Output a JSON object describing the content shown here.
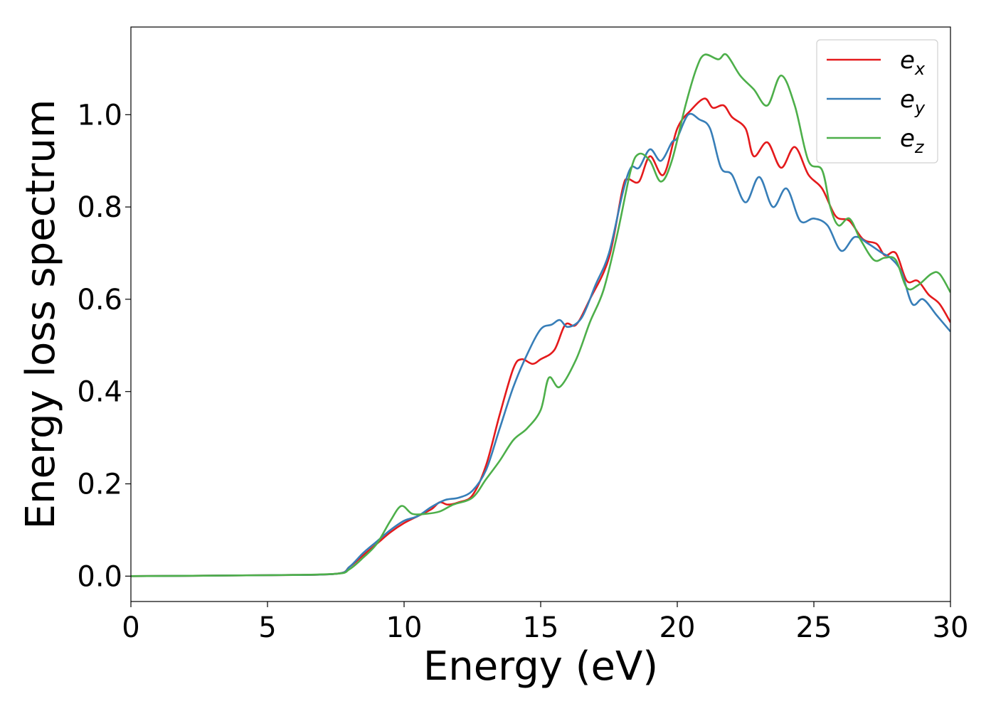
{
  "chart_data": {
    "type": "line",
    "title": "",
    "xlabel": "Energy (eV)",
    "ylabel": "Energy loss spectrum",
    "xlim": [
      0,
      30
    ],
    "ylim": [
      -0.055,
      1.19
    ],
    "xticks": [
      0,
      5,
      10,
      15,
      20,
      25,
      30
    ],
    "xtick_labels": [
      "0",
      "5",
      "10",
      "15",
      "20",
      "25",
      "30"
    ],
    "yticks": [
      0.0,
      0.2,
      0.4,
      0.6,
      0.8,
      1.0
    ],
    "ytick_labels": [
      "0.0",
      "0.2",
      "0.4",
      "0.6",
      "0.8",
      "1.0"
    ],
    "grid": false,
    "legend_position": "top-right",
    "series": [
      {
        "name": "e_x",
        "label_base": "e",
        "label_sub": "x",
        "color": "#e41a1c",
        "points": [
          [
            0,
            0.0
          ],
          [
            5,
            0.002
          ],
          [
            7.5,
            0.005
          ],
          [
            8.0,
            0.02
          ],
          [
            8.5,
            0.045
          ],
          [
            9.0,
            0.07
          ],
          [
            9.5,
            0.095
          ],
          [
            10.0,
            0.115
          ],
          [
            10.5,
            0.13
          ],
          [
            11.0,
            0.145
          ],
          [
            11.3,
            0.16
          ],
          [
            11.6,
            0.155
          ],
          [
            12.0,
            0.16
          ],
          [
            12.5,
            0.175
          ],
          [
            13.0,
            0.24
          ],
          [
            13.5,
            0.35
          ],
          [
            14.0,
            0.45
          ],
          [
            14.3,
            0.47
          ],
          [
            14.7,
            0.46
          ],
          [
            15.0,
            0.47
          ],
          [
            15.5,
            0.49
          ],
          [
            15.9,
            0.545
          ],
          [
            16.3,
            0.545
          ],
          [
            16.8,
            0.6
          ],
          [
            17.5,
            0.69
          ],
          [
            18.0,
            0.84
          ],
          [
            18.2,
            0.86
          ],
          [
            18.6,
            0.855
          ],
          [
            19.0,
            0.91
          ],
          [
            19.5,
            0.87
          ],
          [
            20.0,
            0.97
          ],
          [
            20.5,
            1.01
          ],
          [
            21.0,
            1.035
          ],
          [
            21.3,
            1.015
          ],
          [
            21.7,
            1.02
          ],
          [
            22.0,
            0.995
          ],
          [
            22.5,
            0.97
          ],
          [
            22.8,
            0.91
          ],
          [
            23.3,
            0.94
          ],
          [
            23.8,
            0.885
          ],
          [
            24.3,
            0.93
          ],
          [
            24.8,
            0.87
          ],
          [
            25.3,
            0.84
          ],
          [
            25.8,
            0.78
          ],
          [
            26.3,
            0.77
          ],
          [
            26.8,
            0.73
          ],
          [
            27.3,
            0.72
          ],
          [
            27.6,
            0.695
          ],
          [
            28.0,
            0.7
          ],
          [
            28.4,
            0.64
          ],
          [
            28.8,
            0.64
          ],
          [
            29.2,
            0.61
          ],
          [
            29.6,
            0.59
          ],
          [
            30.0,
            0.55
          ]
        ]
      },
      {
        "name": "e_y",
        "label_base": "e",
        "label_sub": "y",
        "color": "#377eb8",
        "points": [
          [
            0,
            0.0
          ],
          [
            5,
            0.002
          ],
          [
            7.5,
            0.005
          ],
          [
            8.0,
            0.02
          ],
          [
            8.5,
            0.05
          ],
          [
            9.0,
            0.075
          ],
          [
            9.5,
            0.1
          ],
          [
            10.0,
            0.12
          ],
          [
            10.5,
            0.13
          ],
          [
            11.0,
            0.15
          ],
          [
            11.5,
            0.165
          ],
          [
            12.0,
            0.17
          ],
          [
            12.5,
            0.185
          ],
          [
            13.0,
            0.23
          ],
          [
            13.5,
            0.32
          ],
          [
            14.0,
            0.41
          ],
          [
            14.5,
            0.48
          ],
          [
            15.0,
            0.535
          ],
          [
            15.4,
            0.545
          ],
          [
            15.7,
            0.555
          ],
          [
            16.0,
            0.54
          ],
          [
            16.5,
            0.56
          ],
          [
            17.0,
            0.63
          ],
          [
            17.5,
            0.7
          ],
          [
            18.0,
            0.83
          ],
          [
            18.3,
            0.885
          ],
          [
            18.6,
            0.885
          ],
          [
            19.0,
            0.925
          ],
          [
            19.4,
            0.9
          ],
          [
            19.8,
            0.94
          ],
          [
            20.0,
            0.95
          ],
          [
            20.4,
            1.0
          ],
          [
            20.8,
            0.99
          ],
          [
            21.2,
            0.97
          ],
          [
            21.6,
            0.885
          ],
          [
            22.0,
            0.87
          ],
          [
            22.5,
            0.81
          ],
          [
            23.0,
            0.865
          ],
          [
            23.5,
            0.8
          ],
          [
            24.0,
            0.84
          ],
          [
            24.5,
            0.77
          ],
          [
            25.0,
            0.775
          ],
          [
            25.5,
            0.76
          ],
          [
            26.0,
            0.705
          ],
          [
            26.5,
            0.735
          ],
          [
            27.0,
            0.72
          ],
          [
            27.5,
            0.7
          ],
          [
            27.8,
            0.69
          ],
          [
            28.2,
            0.66
          ],
          [
            28.6,
            0.59
          ],
          [
            29.0,
            0.6
          ],
          [
            29.5,
            0.565
          ],
          [
            30.0,
            0.53
          ]
        ]
      },
      {
        "name": "e_z",
        "label_base": "e",
        "label_sub": "z",
        "color": "#4daf4a",
        "points": [
          [
            0,
            0.0
          ],
          [
            5,
            0.002
          ],
          [
            7.5,
            0.005
          ],
          [
            8.0,
            0.015
          ],
          [
            8.5,
            0.04
          ],
          [
            9.0,
            0.07
          ],
          [
            9.5,
            0.12
          ],
          [
            9.9,
            0.152
          ],
          [
            10.3,
            0.135
          ],
          [
            10.8,
            0.135
          ],
          [
            11.3,
            0.14
          ],
          [
            11.8,
            0.155
          ],
          [
            12.5,
            0.17
          ],
          [
            13.0,
            0.21
          ],
          [
            13.5,
            0.25
          ],
          [
            14.0,
            0.295
          ],
          [
            14.5,
            0.32
          ],
          [
            15.0,
            0.36
          ],
          [
            15.3,
            0.43
          ],
          [
            15.7,
            0.41
          ],
          [
            16.3,
            0.47
          ],
          [
            16.8,
            0.55
          ],
          [
            17.3,
            0.62
          ],
          [
            17.8,
            0.74
          ],
          [
            18.3,
            0.88
          ],
          [
            18.6,
            0.915
          ],
          [
            19.0,
            0.9
          ],
          [
            19.4,
            0.855
          ],
          [
            19.8,
            0.9
          ],
          [
            20.3,
            1.02
          ],
          [
            20.7,
            1.1
          ],
          [
            21.0,
            1.13
          ],
          [
            21.5,
            1.12
          ],
          [
            21.8,
            1.13
          ],
          [
            22.3,
            1.085
          ],
          [
            22.8,
            1.055
          ],
          [
            23.3,
            1.02
          ],
          [
            23.8,
            1.085
          ],
          [
            24.3,
            1.02
          ],
          [
            24.8,
            0.9
          ],
          [
            25.3,
            0.88
          ],
          [
            25.6,
            0.8
          ],
          [
            25.9,
            0.76
          ],
          [
            26.3,
            0.775
          ],
          [
            26.7,
            0.73
          ],
          [
            27.2,
            0.685
          ],
          [
            27.6,
            0.69
          ],
          [
            28.0,
            0.685
          ],
          [
            28.4,
            0.625
          ],
          [
            28.8,
            0.63
          ],
          [
            29.3,
            0.655
          ],
          [
            29.6,
            0.655
          ],
          [
            30.0,
            0.615
          ]
        ]
      }
    ]
  }
}
